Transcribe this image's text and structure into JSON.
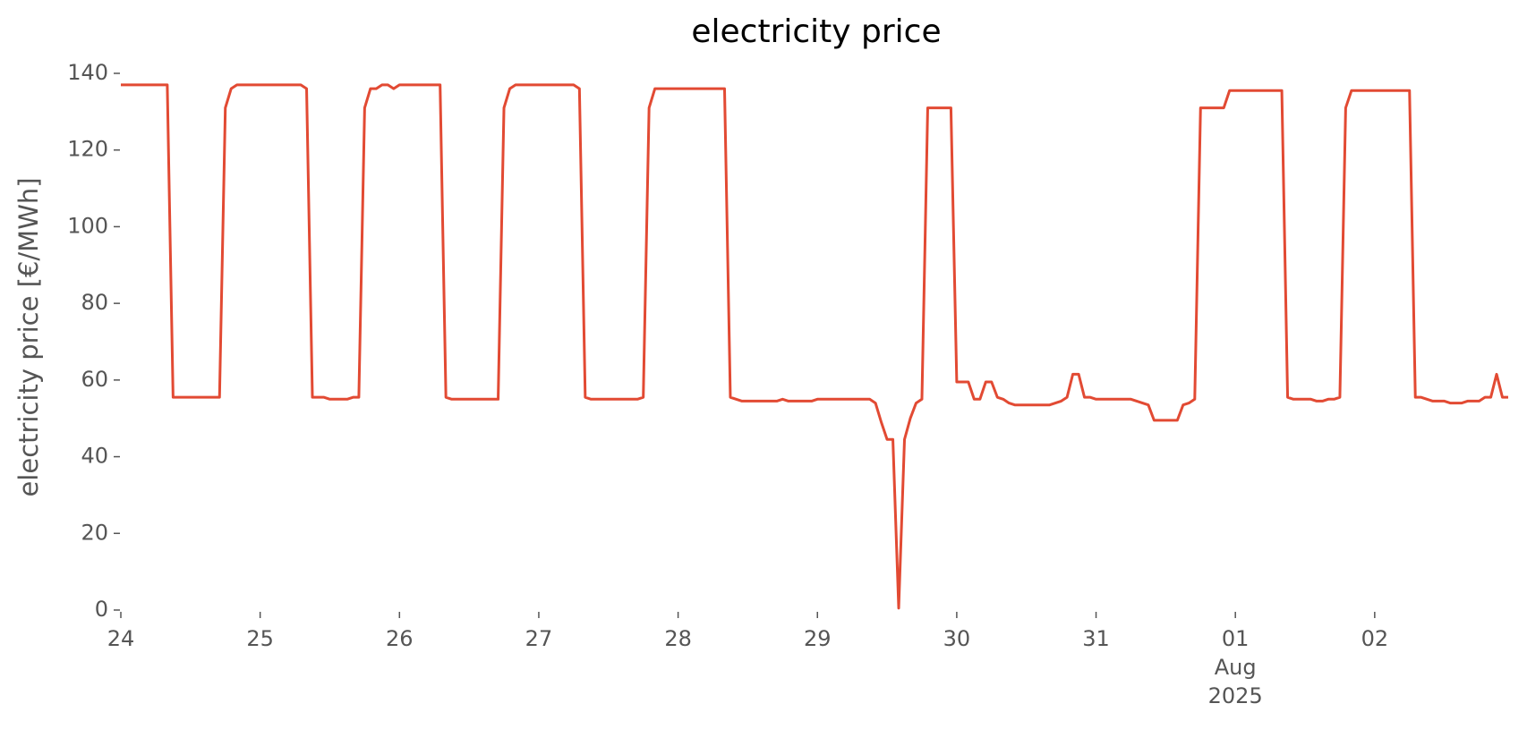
{
  "chart_data": {
    "type": "line",
    "title": "electricity price",
    "ylabel": "electricity price [€/MWh]",
    "x": [
      0,
      8,
      9,
      17,
      18,
      19,
      20,
      31,
      32,
      33,
      35,
      36,
      39,
      40,
      41,
      42,
      43,
      44,
      45,
      46,
      47,
      48,
      55,
      56,
      57,
      65,
      66,
      67,
      68,
      78,
      79,
      80,
      81,
      89,
      90,
      91,
      92,
      104,
      105,
      106,
      107,
      113,
      114,
      115,
      119,
      120,
      128,
      129,
      130,
      131,
      132,
      133,
      134,
      135,
      136,
      137,
      138,
      139,
      143,
      144,
      146,
      147,
      148,
      149,
      150,
      151,
      152,
      153,
      154,
      160,
      161,
      162,
      163,
      164,
      165,
      166,
      167,
      168,
      174,
      175,
      176,
      177,
      178,
      182,
      183,
      184,
      185,
      186,
      190,
      191,
      200,
      201,
      202,
      205,
      206,
      207,
      208,
      209,
      210,
      211,
      212,
      222,
      223,
      224,
      225,
      226,
      228,
      229,
      231,
      232,
      234,
      235,
      236,
      237,
      238,
      239
    ],
    "series": [
      {
        "name": "electricity price",
        "color": "#e24a33",
        "values": [
          137,
          137,
          55.5,
          55.5,
          131,
          136,
          137,
          137,
          136,
          55.5,
          55.5,
          55,
          55,
          55.5,
          55.5,
          131,
          136,
          136,
          137,
          137,
          136,
          137,
          137,
          55.5,
          55,
          55,
          131,
          136,
          137,
          137,
          136,
          55.5,
          55,
          55,
          55.5,
          131,
          136,
          136,
          55.5,
          55,
          54.5,
          54.5,
          55,
          54.5,
          54.5,
          55,
          55,
          55,
          54,
          49,
          44.5,
          44.5,
          0.5,
          44.5,
          50,
          54,
          55,
          131,
          131,
          59.5,
          59.5,
          55,
          55,
          59.5,
          59.5,
          55.5,
          55,
          54,
          53.5,
          53.5,
          54,
          54.5,
          55.5,
          61.5,
          61.5,
          55.5,
          55.5,
          55,
          55,
          54.5,
          54,
          53.5,
          49.5,
          49.5,
          53.5,
          54,
          55,
          131,
          131,
          135.5,
          135.5,
          55.5,
          55,
          55,
          54.5,
          54.5,
          55,
          55,
          55.5,
          131,
          135.5,
          135.5,
          55.5,
          55.5,
          55,
          54.5,
          54.5,
          54,
          54,
          54.5,
          54.5,
          55.5,
          55.5,
          61.5,
          55.5,
          55.5
        ]
      }
    ],
    "xlim": [
      0,
      239
    ],
    "xticks": [
      {
        "value": 0,
        "label": "24"
      },
      {
        "value": 24,
        "label": "25"
      },
      {
        "value": 48,
        "label": "26"
      },
      {
        "value": 72,
        "label": "27"
      },
      {
        "value": 96,
        "label": "28"
      },
      {
        "value": 120,
        "label": "29"
      },
      {
        "value": 144,
        "label": "30"
      },
      {
        "value": 168,
        "label": "31"
      },
      {
        "value": 192,
        "label": "01\nAug\n2025"
      },
      {
        "value": 216,
        "label": "02"
      }
    ],
    "ylim": [
      0,
      140
    ],
    "yticks": [
      0,
      20,
      40,
      60,
      80,
      100,
      120,
      140
    ],
    "grid": false
  }
}
